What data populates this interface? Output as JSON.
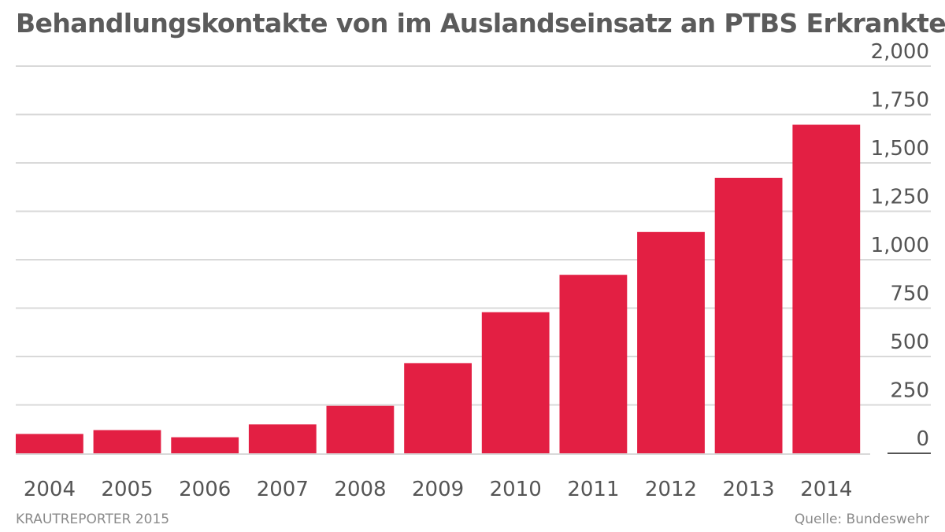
{
  "header": {
    "title": "Behandlungskontakte von im Auslandseinsatz an PTBS Erkrankten"
  },
  "footer": {
    "credit": "KRAUTREPORTER 2015",
    "source": "Quelle: Bundeswehr"
  },
  "colors": {
    "bar": "#e31f43",
    "grid": "#d9d9d9",
    "baseline": "#555555"
  },
  "chart_data": {
    "type": "bar",
    "categories": [
      "2004",
      "2005",
      "2006",
      "2007",
      "2008",
      "2009",
      "2010",
      "2011",
      "2012",
      "2013",
      "2014"
    ],
    "values": [
      100,
      120,
      83,
      149,
      245,
      466,
      729,
      922,
      1143,
      1423,
      1697
    ],
    "ylim": [
      0,
      2000
    ],
    "yticks": [
      0,
      250,
      500,
      750,
      1000,
      1250,
      1500,
      1750,
      2000
    ],
    "ytick_labels": [
      "0",
      "250",
      "500",
      "750",
      "1,000",
      "1,250",
      "1,500",
      "1,750",
      "2,000"
    ],
    "y_axis_position": "right",
    "grid": true,
    "legend": "none"
  }
}
